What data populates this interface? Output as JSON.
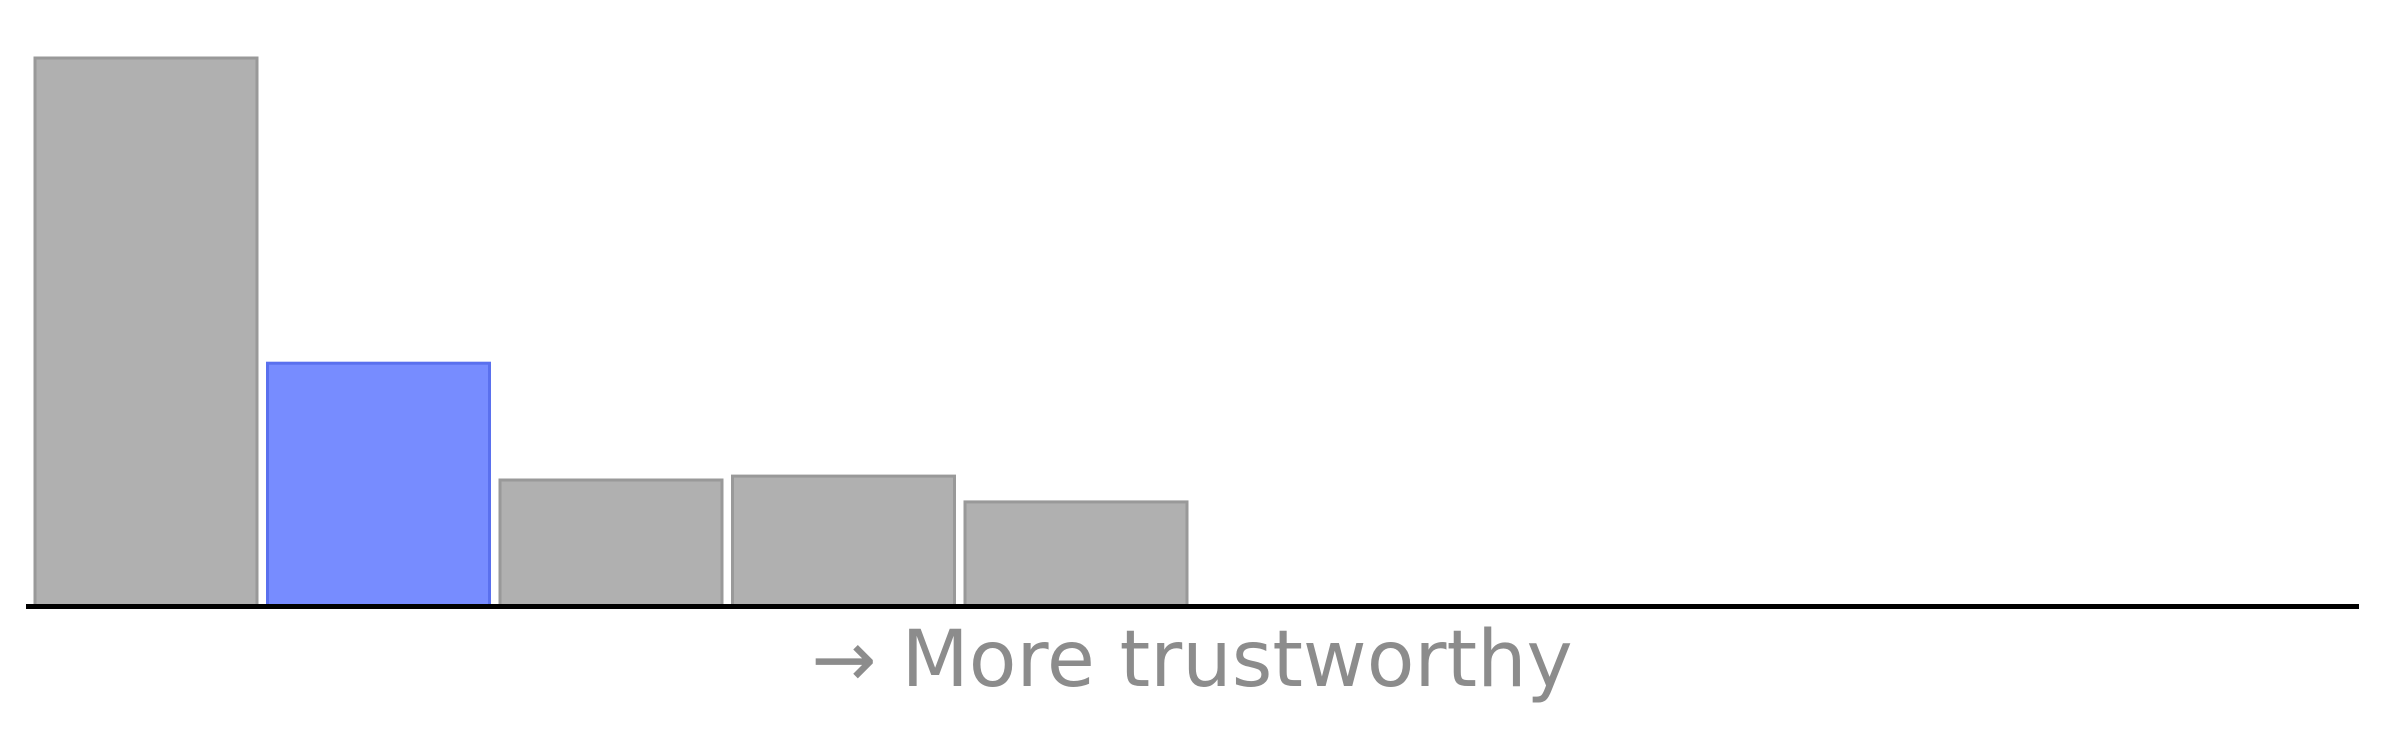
{
  "chart_data": {
    "type": "bar",
    "xlabel": "→ More trustworthy",
    "ylim": [
      0,
      100
    ],
    "values": [
      100,
      44.3,
      23,
      23.7,
      19
    ],
    "highlight_index": 1,
    "colors": {
      "bar_fill": "#b0b0b0",
      "bar_stroke": "#999999",
      "highlight_fill": "#778cff",
      "highlight_stroke": "#5a70ee",
      "axis": "#000000",
      "label": "#8c8c8c"
    },
    "grid": false,
    "legend": "none"
  }
}
